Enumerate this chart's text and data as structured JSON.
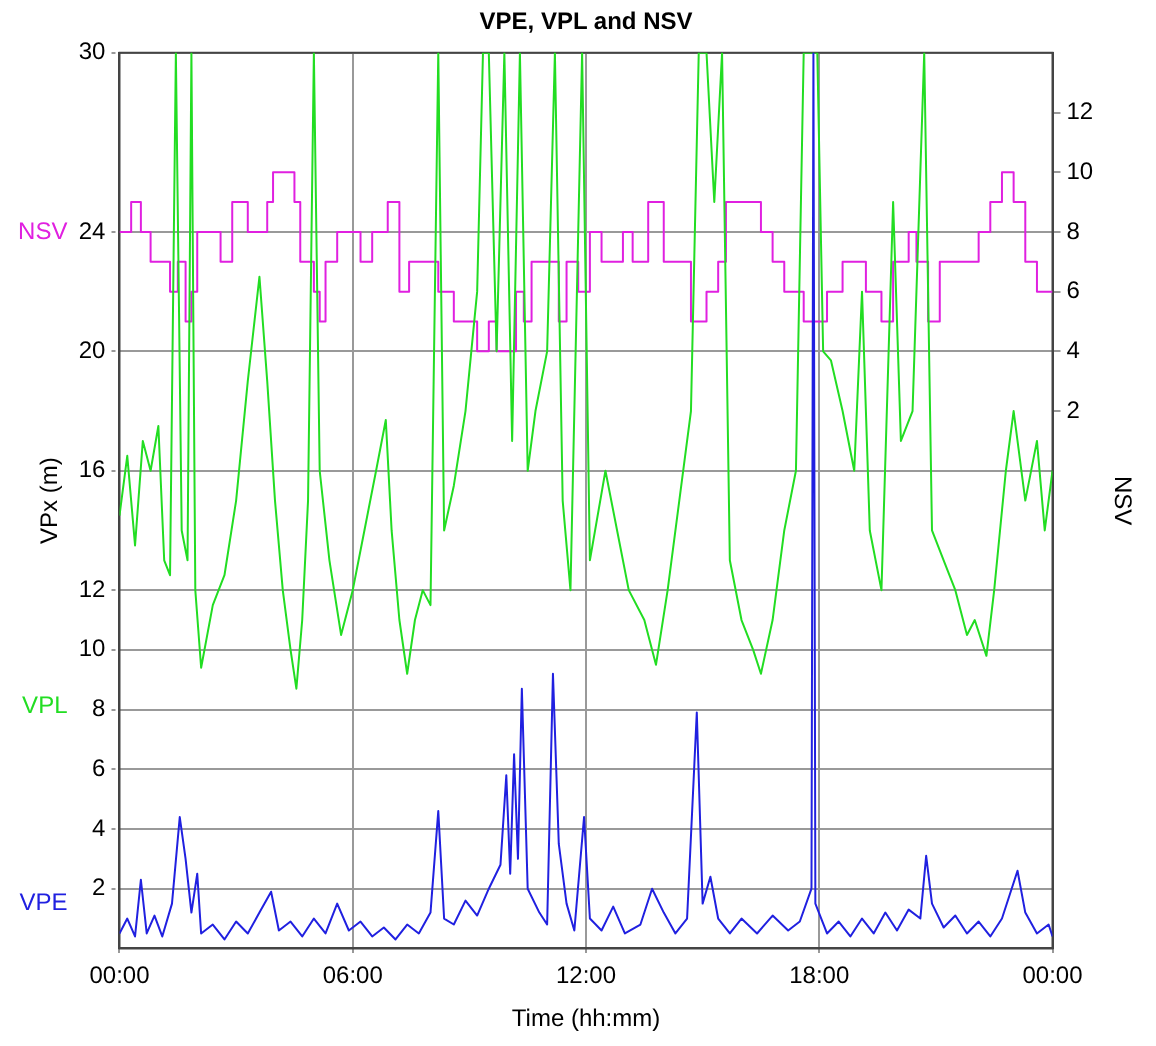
{
  "chart_data": {
    "type": "line",
    "title": "VPE, VPL and NSV",
    "xlabel": "Time (hh:mm)",
    "ylabel": "VPx (m)",
    "y2label": "NSV",
    "xlim": [
      0,
      24
    ],
    "xticks": [
      {
        "value": 0,
        "label": "00:00"
      },
      {
        "value": 6,
        "label": "06:00"
      },
      {
        "value": 12,
        "label": "12:00"
      },
      {
        "value": 18,
        "label": "18:00"
      },
      {
        "value": 24,
        "label": "00:00"
      }
    ],
    "ylim": [
      0,
      30
    ],
    "yticks": [
      2,
      4,
      6,
      8,
      10,
      12,
      16,
      20,
      24,
      30
    ],
    "y2lim": [
      -16,
      14
    ],
    "y2ticks": [
      2,
      4,
      6,
      8,
      10,
      12
    ],
    "grid": true,
    "legend": false,
    "marker": "none",
    "line_style": "solid",
    "series": [
      {
        "name": "VPE",
        "color": "#2020e0",
        "x": [
          0,
          0.2,
          0.4,
          0.55,
          0.7,
          0.9,
          1.1,
          1.35,
          1.55,
          1.7,
          1.85,
          2.0,
          2.1,
          2.4,
          2.7,
          3.0,
          3.3,
          3.6,
          3.9,
          4.1,
          4.4,
          4.7,
          5.0,
          5.3,
          5.6,
          5.9,
          6.2,
          6.5,
          6.8,
          7.1,
          7.4,
          7.7,
          8.0,
          8.2,
          8.35,
          8.6,
          8.9,
          9.2,
          9.5,
          9.8,
          9.95,
          10.05,
          10.15,
          10.25,
          10.35,
          10.5,
          10.8,
          11.0,
          11.15,
          11.3,
          11.5,
          11.7,
          11.95,
          12.1,
          12.4,
          12.7,
          13.0,
          13.4,
          13.7,
          14.0,
          14.3,
          14.6,
          14.85,
          15.0,
          15.2,
          15.4,
          15.7,
          16.0,
          16.4,
          16.8,
          17.2,
          17.5,
          17.8,
          17.85,
          17.9,
          18.2,
          18.5,
          18.8,
          19.1,
          19.4,
          19.7,
          20.0,
          20.3,
          20.6,
          20.75,
          20.9,
          21.2,
          21.5,
          21.8,
          22.1,
          22.4,
          22.7,
          23.1,
          23.3,
          23.6,
          23.9,
          24
        ],
        "values": [
          0.5,
          1.0,
          0.4,
          2.3,
          0.5,
          1.1,
          0.4,
          1.5,
          4.4,
          3.0,
          1.2,
          2.5,
          0.5,
          0.8,
          0.3,
          0.9,
          0.5,
          1.2,
          1.9,
          0.6,
          0.9,
          0.4,
          1.0,
          0.5,
          1.5,
          0.6,
          0.9,
          0.4,
          0.7,
          0.3,
          0.8,
          0.5,
          1.2,
          4.6,
          1.0,
          0.8,
          1.6,
          1.1,
          2.0,
          2.8,
          5.8,
          2.5,
          6.5,
          3.0,
          8.7,
          2.0,
          1.2,
          0.8,
          9.2,
          3.5,
          1.5,
          0.6,
          4.4,
          1.0,
          0.6,
          1.4,
          0.5,
          0.8,
          2.0,
          1.2,
          0.5,
          1.0,
          7.9,
          1.5,
          2.4,
          1.0,
          0.5,
          1.0,
          0.5,
          1.1,
          0.6,
          0.9,
          2.0,
          30,
          1.5,
          0.5,
          0.9,
          0.4,
          1.0,
          0.5,
          1.2,
          0.6,
          1.3,
          1.0,
          3.1,
          1.5,
          0.7,
          1.1,
          0.5,
          0.9,
          0.4,
          1.0,
          2.6,
          1.2,
          0.5,
          0.8,
          0.4
        ]
      },
      {
        "name": "VPL",
        "color": "#22dd22",
        "x": [
          0,
          0.2,
          0.4,
          0.6,
          0.8,
          1.0,
          1.15,
          1.3,
          1.45,
          1.6,
          1.75,
          1.85,
          1.95,
          2.1,
          2.4,
          2.7,
          3.0,
          3.3,
          3.6,
          3.8,
          4.0,
          4.2,
          4.4,
          4.55,
          4.7,
          4.85,
          5.0,
          5.15,
          5.4,
          5.7,
          6.0,
          6.3,
          6.6,
          6.85,
          7.0,
          7.2,
          7.4,
          7.6,
          7.8,
          8.0,
          8.2,
          8.35,
          8.6,
          8.9,
          9.2,
          9.35,
          9.5,
          9.7,
          9.9,
          10.1,
          10.3,
          10.5,
          10.7,
          11.0,
          11.2,
          11.4,
          11.6,
          11.9,
          12.1,
          12.5,
          12.8,
          13.1,
          13.5,
          13.8,
          14.1,
          14.4,
          14.7,
          14.9,
          15.1,
          15.3,
          15.5,
          15.7,
          16.0,
          16.3,
          16.5,
          16.8,
          17.1,
          17.4,
          17.6,
          17.8,
          17.95,
          18.1,
          18.3,
          18.6,
          18.9,
          19.1,
          19.3,
          19.6,
          19.9,
          20.1,
          20.4,
          20.7,
          20.9,
          21.2,
          21.5,
          21.8,
          22.0,
          22.3,
          22.5,
          22.8,
          23.0,
          23.3,
          23.6,
          23.8,
          24
        ],
        "values": [
          14.5,
          16.5,
          13.5,
          17,
          16,
          17.5,
          13,
          12.5,
          30,
          14,
          13,
          30,
          12,
          9.4,
          11.5,
          12.5,
          15,
          19,
          22.5,
          19,
          15,
          12,
          10,
          8.7,
          11,
          15,
          30,
          16,
          13,
          10.5,
          12,
          14,
          16,
          17.7,
          14,
          11,
          9.2,
          11,
          12,
          11.5,
          30,
          14,
          15.5,
          18,
          22,
          30,
          30,
          20,
          30,
          17,
          30,
          16,
          18,
          20,
          30,
          15,
          12,
          30,
          13,
          16,
          14,
          12,
          11,
          9.5,
          12,
          15,
          18,
          30,
          30,
          25,
          30,
          13,
          11,
          10,
          9.2,
          11,
          14,
          16,
          30,
          30,
          30,
          20,
          19.7,
          18,
          16,
          22,
          14,
          12,
          25,
          17,
          18,
          30,
          14,
          13,
          12,
          10.5,
          11,
          9.8,
          12,
          16,
          18,
          15,
          17,
          14,
          16
        ]
      },
      {
        "name": "NSV",
        "color": "#e020e0",
        "type": "step",
        "axis": "y2",
        "x": [
          0,
          0.3,
          0.55,
          0.8,
          1.3,
          1.5,
          1.7,
          1.85,
          2.0,
          2.6,
          2.9,
          3.3,
          3.8,
          3.95,
          4.5,
          4.65,
          5.0,
          5.15,
          5.3,
          5.6,
          6.2,
          6.5,
          6.9,
          7.2,
          7.45,
          8.2,
          8.6,
          9.2,
          9.5,
          9.7,
          10.2,
          10.4,
          10.6,
          11.3,
          11.5,
          11.8,
          12.1,
          12.4,
          12.95,
          13.2,
          13.6,
          14.0,
          14.7,
          15.1,
          15.4,
          15.6,
          16.5,
          16.8,
          17.1,
          17.6,
          18.2,
          18.6,
          19.2,
          19.6,
          19.9,
          20.3,
          20.5,
          20.8,
          21.1,
          22.1,
          22.4,
          22.7,
          23.0,
          23.3,
          23.6,
          24
        ],
        "values": [
          8,
          9,
          8,
          7,
          6,
          7,
          5,
          6,
          8,
          7,
          9,
          8,
          9,
          10,
          9,
          7,
          6,
          5,
          7,
          8,
          7,
          8,
          9,
          6,
          7,
          6,
          5,
          4,
          5,
          4,
          6,
          5,
          7,
          5,
          7,
          6,
          8,
          7,
          8,
          7,
          9,
          7,
          5,
          6,
          7,
          9,
          8,
          7,
          6,
          5,
          6,
          7,
          6,
          5,
          7,
          8,
          7,
          5,
          7,
          8,
          9,
          10,
          9,
          7,
          6,
          6
        ]
      }
    ]
  }
}
